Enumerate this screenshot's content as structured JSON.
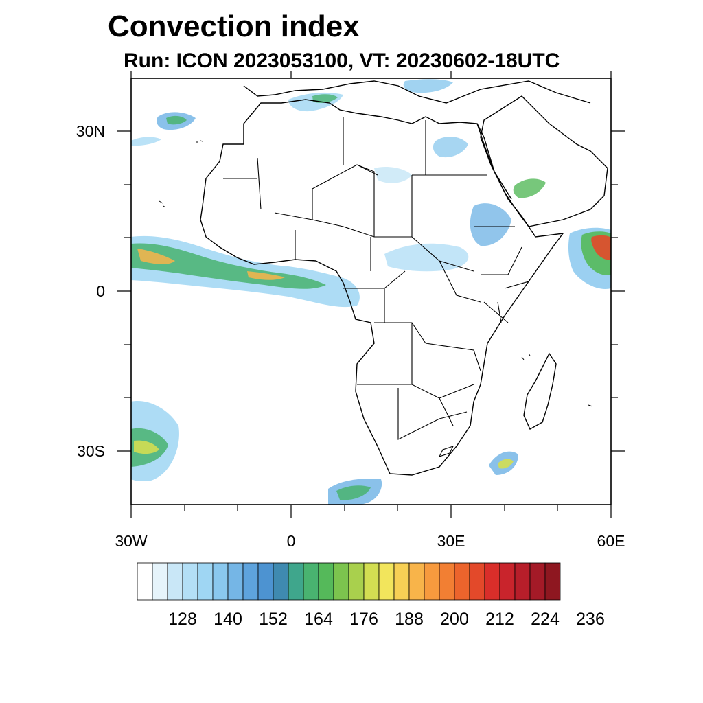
{
  "title": "Convection index",
  "subtitle": "Run: ICON 2023053100,  VT: 20230602-18UTC",
  "map": {
    "region": "Africa",
    "lon_range": [
      -30,
      60
    ],
    "lat_range": [
      -40,
      40
    ],
    "lat_labels": [
      "30N",
      "0",
      "30S"
    ],
    "lon_labels": [
      "30W",
      "0",
      "30E",
      "60E"
    ]
  },
  "colorbar": {
    "tick_labels": [
      "128",
      "140",
      "152",
      "164",
      "176",
      "188",
      "200",
      "212",
      "224",
      "236"
    ],
    "colors": [
      "#ffffff",
      "#e6f4fb",
      "#c9e7f7",
      "#b3dff6",
      "#9fd6f3",
      "#8ac8ee",
      "#75b6e6",
      "#5ea3dd",
      "#4d93d1",
      "#3f8ab0",
      "#3fa68c",
      "#49b370",
      "#55b95a",
      "#7cc44e",
      "#a9d04d",
      "#d3de52",
      "#f2e55c",
      "#f7d055",
      "#f8b44a",
      "#f79a3e",
      "#f27f33",
      "#ec642c",
      "#e3492a",
      "#d92e2a",
      "#c9242c",
      "#b71e2a",
      "#a41a27",
      "#8e1720"
    ]
  },
  "colors": {
    "border": "#000000",
    "background": "#ffffff"
  }
}
